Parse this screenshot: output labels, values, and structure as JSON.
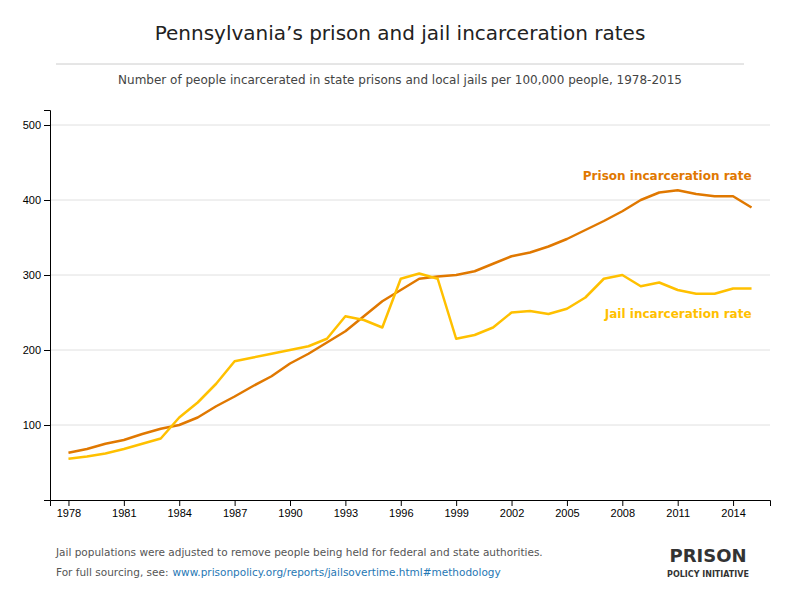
{
  "chart_data": {
    "type": "line",
    "title": "Pennsylvania’s prison and jail incarceration rates",
    "subtitle": "Number of people incarcerated in state prisons and local jails per 100,000 people, 1978-2015",
    "x": [
      1978,
      1979,
      1980,
      1981,
      1982,
      1983,
      1984,
      1985,
      1986,
      1987,
      1988,
      1989,
      1990,
      1991,
      1992,
      1993,
      1994,
      1995,
      1996,
      1997,
      1998,
      1999,
      2000,
      2001,
      2002,
      2003,
      2004,
      2005,
      2006,
      2007,
      2008,
      2009,
      2010,
      2011,
      2012,
      2013,
      2014,
      2015
    ],
    "series": [
      {
        "name": "Prison incarceration rate",
        "color": "#e07800",
        "values": [
          63,
          68,
          75,
          80,
          88,
          95,
          100,
          110,
          125,
          138,
          152,
          165,
          182,
          195,
          210,
          225,
          245,
          265,
          280,
          295,
          298,
          300,
          305,
          315,
          325,
          330,
          338,
          348,
          360,
          372,
          385,
          400,
          410,
          413,
          408,
          405,
          405,
          390
        ]
      },
      {
        "name": "Jail incarceration rate",
        "color": "#ffc000",
        "values": [
          55,
          58,
          62,
          68,
          75,
          82,
          110,
          130,
          155,
          185,
          190,
          195,
          200,
          205,
          215,
          245,
          240,
          230,
          295,
          302,
          295,
          215,
          220,
          230,
          250,
          252,
          248,
          255,
          270,
          295,
          300,
          285,
          290,
          280,
          275,
          275,
          282,
          282
        ]
      }
    ],
    "xlim": [
      1977,
      2016
    ],
    "xticks": [
      1978,
      1981,
      1984,
      1987,
      1990,
      1993,
      1996,
      1999,
      2002,
      2005,
      2008,
      2011,
      2014
    ],
    "ylim": [
      0,
      520
    ],
    "yticks": [
      100,
      200,
      300,
      400,
      500
    ],
    "grid": true,
    "footnotes": [
      "Jail populations were adjusted to remove people being held for federal and state authorities.",
      "For full sourcing, see:"
    ],
    "source_url": "www.prisonpolicy.org/reports/jailsovertime.html#methodology",
    "logo": [
      "PRISON",
      "POLICY INITIATIVE"
    ]
  }
}
